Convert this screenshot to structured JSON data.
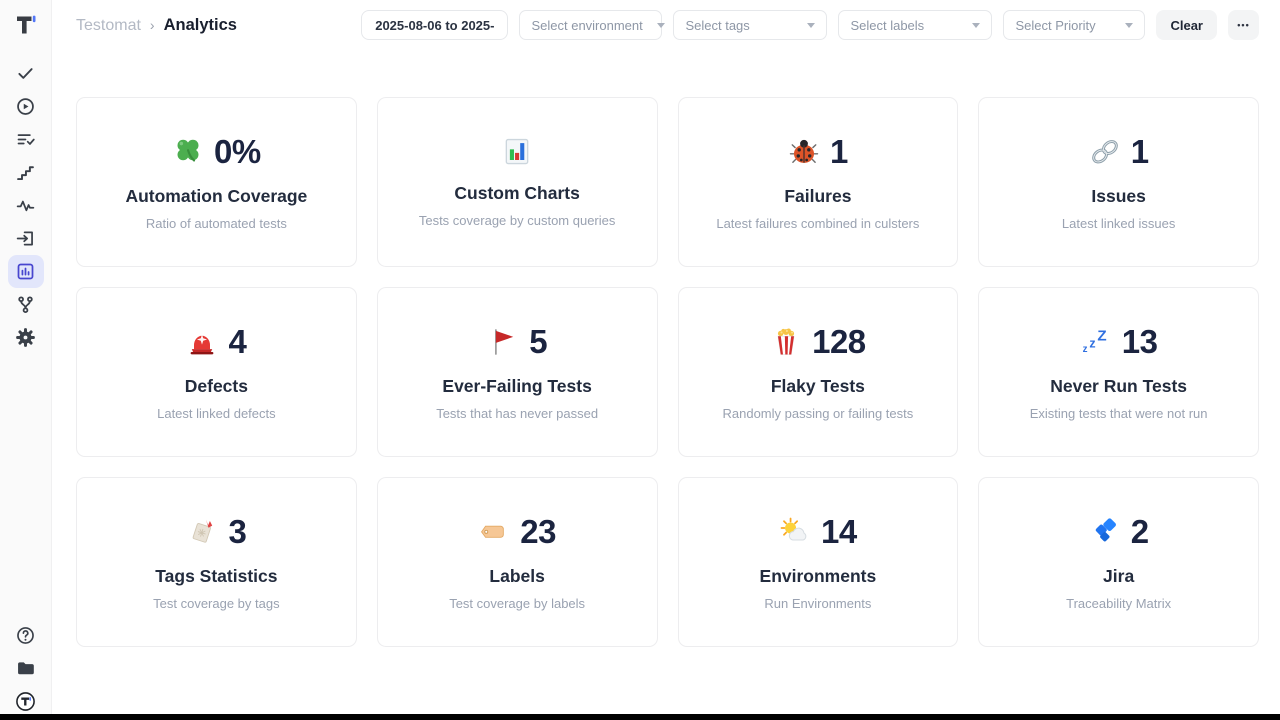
{
  "breadcrumb": {
    "project": "Testomat",
    "separator": "›",
    "page": "Analytics"
  },
  "filters": {
    "date_range": "2025-08-06 to 2025-",
    "selects": [
      {
        "name": "environment",
        "placeholder": "Select environment"
      },
      {
        "name": "tags",
        "placeholder": "Select tags"
      },
      {
        "name": "labels",
        "placeholder": "Select labels"
      },
      {
        "name": "priority",
        "placeholder": "Select Priority"
      }
    ],
    "clear_label": "Clear",
    "more_label": "•••"
  },
  "sidebar": {
    "top": [
      {
        "id": "tests",
        "icon": "check"
      },
      {
        "id": "runs",
        "icon": "play-circle"
      },
      {
        "id": "plans",
        "icon": "list-check"
      },
      {
        "id": "milestones",
        "icon": "stairs"
      },
      {
        "id": "pulse",
        "icon": "pulse"
      },
      {
        "id": "import",
        "icon": "import"
      },
      {
        "id": "analytics",
        "icon": "analytics-chart",
        "selected": true
      },
      {
        "id": "branches",
        "icon": "branch"
      },
      {
        "id": "settings",
        "icon": "gear"
      }
    ],
    "bottom": [
      {
        "id": "help",
        "icon": "help-circle"
      },
      {
        "id": "docs",
        "icon": "folder"
      },
      {
        "id": "account",
        "icon": "avatar"
      }
    ]
  },
  "cards": [
    {
      "icon": "clover",
      "value": "0%",
      "title": "Automation Coverage",
      "subtitle": "Ratio of automated tests"
    },
    {
      "icon": "bar-chart",
      "value": "",
      "title": "Custom Charts",
      "subtitle": "Tests coverage by custom queries"
    },
    {
      "icon": "lady-beetle",
      "value": "1",
      "title": "Failures",
      "subtitle": "Latest failures combined in culsters"
    },
    {
      "icon": "link",
      "value": "1",
      "title": "Issues",
      "subtitle": "Latest linked issues"
    },
    {
      "icon": "police-light",
      "value": "4",
      "title": "Defects",
      "subtitle": "Latest linked defects"
    },
    {
      "icon": "red-flag",
      "value": "5",
      "title": "Ever-Failing Tests",
      "subtitle": "Tests that has never passed"
    },
    {
      "icon": "popcorn",
      "value": "128",
      "title": "Flaky Tests",
      "subtitle": "Randomly passing or failing tests"
    },
    {
      "icon": "zzz",
      "value": "13",
      "title": "Never Run Tests",
      "subtitle": "Existing tests that were not run"
    },
    {
      "icon": "bookmark-tag",
      "value": "3",
      "title": "Tags Statistics",
      "subtitle": "Test coverage by tags"
    },
    {
      "icon": "label-tag",
      "value": "23",
      "title": "Labels",
      "subtitle": "Test coverage by labels"
    },
    {
      "icon": "sun-cloud",
      "value": "14",
      "title": "Environments",
      "subtitle": "Run Environments"
    },
    {
      "icon": "jira",
      "value": "2",
      "title": "Jira",
      "subtitle": "Traceability Matrix"
    }
  ],
  "colors": {
    "accent": "#4846cf",
    "selected_pill_bg": "#e2e6fb",
    "stat_text": "#1b2440",
    "subtitle_text": "#9aa2b1",
    "border": "#ededef",
    "sidebar_bg": "#fafafa"
  }
}
